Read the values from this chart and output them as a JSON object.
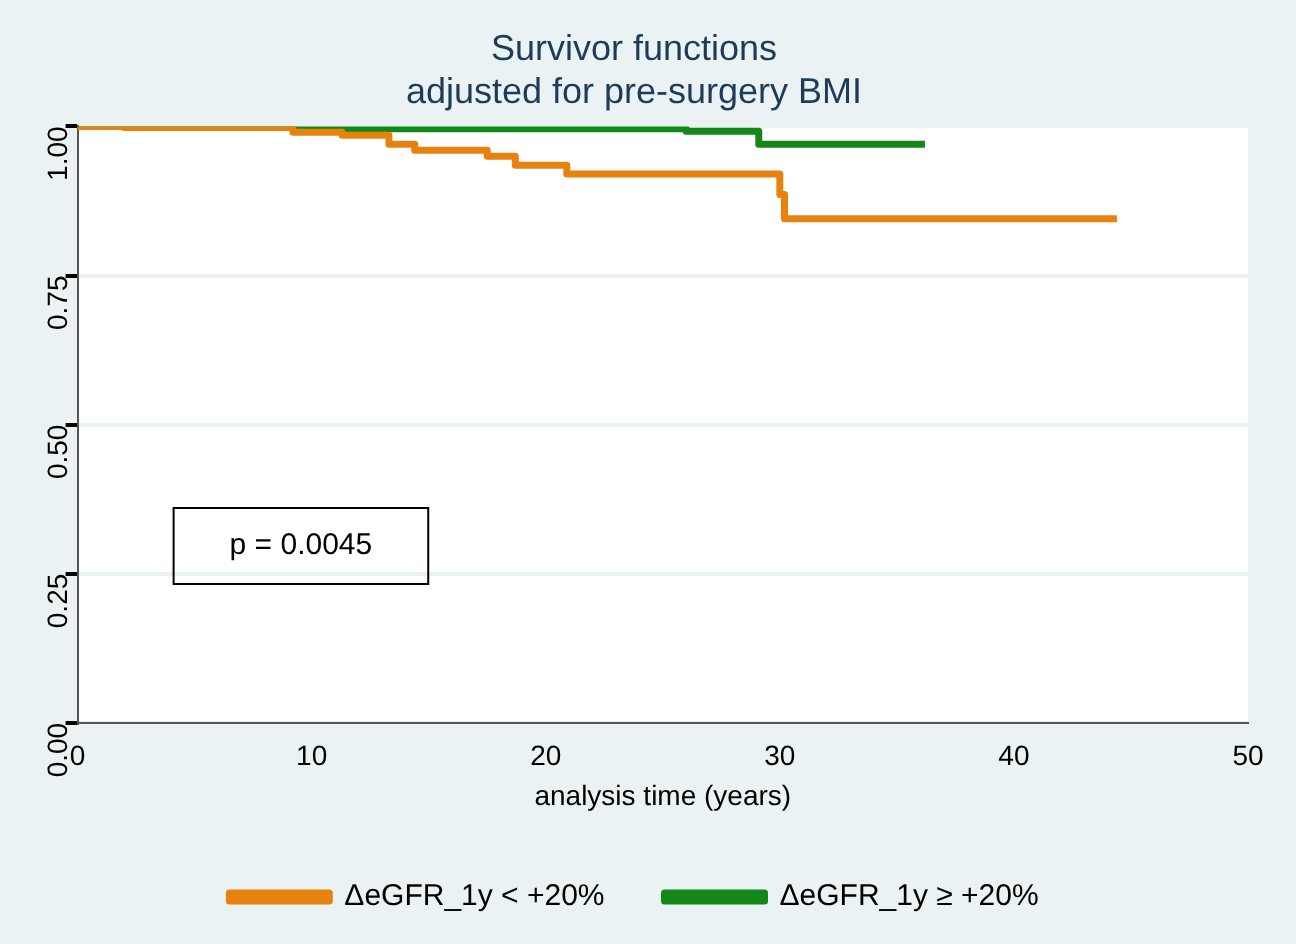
{
  "chart_data": {
    "type": "step",
    "title": "Survivor functions\nadjusted for pre-surgery BMI",
    "xlabel": "analysis time (years)",
    "xlim": [
      0,
      50
    ],
    "xticks": [
      0,
      10,
      20,
      30,
      40,
      50
    ],
    "ylim": [
      0,
      1
    ],
    "yticks": [
      {
        "value": 0,
        "label": "0.00"
      },
      {
        "value": 0.25,
        "label": "0.25"
      },
      {
        "value": 0.5,
        "label": "0.50"
      },
      {
        "value": 0.75,
        "label": "0.75"
      },
      {
        "value": 1,
        "label": "1.00"
      }
    ],
    "grid": "y",
    "legend": "bottom",
    "annotations": [
      "p = 0.0045"
    ],
    "series": [
      {
        "name": "ΔeGFR_1y < +20%",
        "color": "#e8820e",
        "x": [
          0,
          2,
          9.2,
          11.3,
          13.3,
          14.4,
          17.5,
          18.7,
          20.9,
          30,
          30.2,
          44.4
        ],
        "values": [
          1,
          0.998,
          0.99,
          0.985,
          0.97,
          0.96,
          0.95,
          0.935,
          0.92,
          0.886,
          0.845,
          0.845
        ]
      },
      {
        "name": "ΔeGFR_1y ≥ +20%",
        "color": "#14871a",
        "x": [
          0,
          11,
          26,
          29.1,
          36.2
        ],
        "values": [
          1,
          0.996,
          0.992,
          0.97,
          0.97
        ]
      }
    ]
  }
}
